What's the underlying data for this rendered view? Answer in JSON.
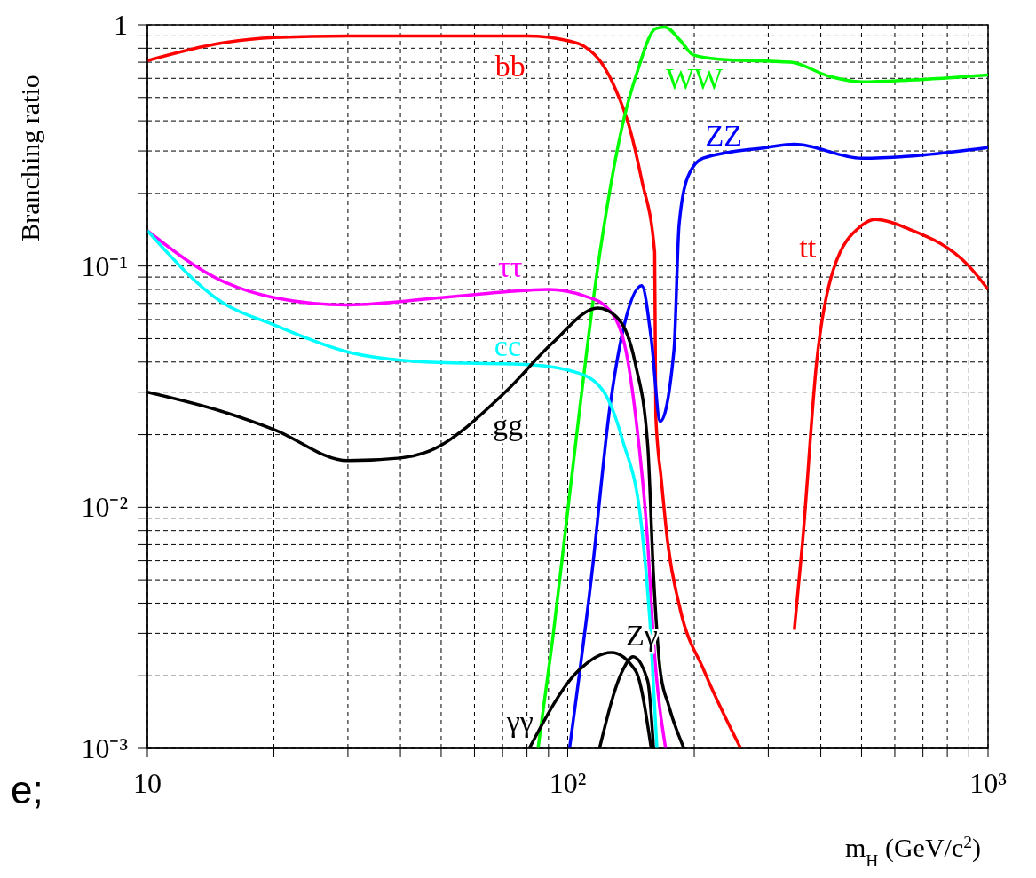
{
  "chart_data": {
    "type": "line",
    "xlabel": "m$_{H}$ (GeV/c$^{2}$)",
    "ylabel": "Branching ratio",
    "log": "xy",
    "grid": true,
    "xlim": [
      10,
      1000
    ],
    "ylim": [
      0.001,
      1
    ],
    "xticks": [
      10,
      {
        "value": 20,
        "label": null
      },
      {
        "value": 30,
        "label": null
      },
      {
        "value": 40,
        "label": null
      },
      {
        "value": 50,
        "label": null
      },
      {
        "value": 60,
        "label": null
      },
      {
        "value": 70,
        "label": null
      },
      {
        "value": 80,
        "label": null
      },
      {
        "value": 90,
        "label": null
      },
      {
        "value": 100,
        "label": "10²"
      },
      {
        "value": 200,
        "label": null
      },
      {
        "value": 300,
        "label": null
      },
      {
        "value": 400,
        "label": null
      },
      {
        "value": 500,
        "label": null
      },
      {
        "value": 600,
        "label": null
      },
      {
        "value": 700,
        "label": null
      },
      {
        "value": 800,
        "label": null
      },
      {
        "value": 900,
        "label": null
      },
      {
        "value": 1000,
        "label": "10³"
      }
    ],
    "yticks": [
      {
        "value": 0.001,
        "label": "10⁻³"
      },
      {
        "value": 0.002,
        "label": null
      },
      {
        "value": 0.003,
        "label": null
      },
      {
        "value": 0.004,
        "label": null
      },
      {
        "value": 0.005,
        "label": null
      },
      {
        "value": 0.006,
        "label": null
      },
      {
        "value": 0.007,
        "label": null
      },
      {
        "value": 0.008,
        "label": null
      },
      {
        "value": 0.009,
        "label": null
      },
      {
        "value": 0.01,
        "label": "10⁻²"
      },
      {
        "value": 0.02,
        "label": null
      },
      {
        "value": 0.03,
        "label": null
      },
      {
        "value": 0.04,
        "label": null
      },
      {
        "value": 0.05,
        "label": null
      },
      {
        "value": 0.06,
        "label": null
      },
      {
        "value": 0.07,
        "label": null
      },
      {
        "value": 0.08,
        "label": null
      },
      {
        "value": 0.09,
        "label": null
      },
      {
        "value": 0.1,
        "label": "10⁻¹"
      },
      {
        "value": 0.2,
        "label": null
      },
      {
        "value": 0.3,
        "label": null
      },
      {
        "value": 0.4,
        "label": null
      },
      {
        "value": 0.5,
        "label": null
      },
      {
        "value": 0.6,
        "label": null
      },
      {
        "value": 0.7,
        "label": null
      },
      {
        "value": 0.8,
        "label": null
      },
      {
        "value": 0.9,
        "label": null
      },
      1
    ],
    "series": [
      {
        "name": "bb",
        "color": "#ff0000",
        "x": [
          10,
          15,
          20,
          30,
          50,
          80,
          100,
          110,
          120,
          130,
          140,
          150,
          161,
          162,
          167,
          173,
          185,
          211,
          258
        ],
        "values": [
          0.71,
          0.84,
          0.886,
          0.9,
          0.9,
          0.9,
          0.86,
          0.81,
          0.7,
          0.54,
          0.38,
          0.227,
          0.114,
          0.024,
          0.013,
          0.0071,
          0.0038,
          0.0021,
          0.001
        ]
      },
      {
        "name": "WW",
        "color": "#00ff00",
        "x": [
          85,
          92,
          101,
          118,
          136,
          146,
          162,
          170,
          186,
          199,
          229,
          339,
          421,
          500,
          650,
          1000
        ],
        "values": [
          0.001,
          0.0028,
          0.0112,
          0.1,
          0.407,
          0.63,
          0.966,
          0.98,
          0.855,
          0.75,
          0.72,
          0.7,
          0.61,
          0.58,
          0.59,
          0.62
        ]
      },
      {
        "name": "ZZ",
        "color": "#0000ff",
        "x": [
          101,
          114,
          126,
          135,
          150,
          158,
          166,
          179,
          184,
          193,
          210,
          297,
          346,
          500,
          1000
        ],
        "values": [
          0.001,
          0.0052,
          0.026,
          0.053,
          0.083,
          0.05,
          0.0227,
          0.045,
          0.147,
          0.234,
          0.28,
          0.31,
          0.32,
          0.28,
          0.31
        ]
      },
      {
        "name": "tt",
        "color": "#ff0000",
        "x": [
          346,
          362,
          391,
          428,
          500,
          538,
          650,
          900,
          1000
        ],
        "values": [
          0.0031,
          0.0072,
          0.04,
          0.096,
          0.147,
          0.156,
          0.142,
          0.1,
          0.08
        ]
      },
      {
        "name": "ττ",
        "color": "#ff00ff",
        "x": [
          10,
          15,
          20,
          30,
          50,
          70,
          90,
          110,
          122,
          135,
          145,
          155,
          160,
          171
        ],
        "values": [
          0.14,
          0.087,
          0.074,
          0.069,
          0.074,
          0.078,
          0.08,
          0.075,
          0.069,
          0.051,
          0.024,
          0.0071,
          0.0028,
          0.001
        ]
      },
      {
        "name": "cc",
        "color": "#00ffff",
        "x": [
          10,
          15,
          20,
          30,
          46,
          81,
          106,
          122,
          135,
          150,
          157,
          163
        ],
        "values": [
          0.14,
          0.071,
          0.057,
          0.044,
          0.04,
          0.039,
          0.036,
          0.03,
          0.019,
          0.0082,
          0.0033,
          0.001
        ]
      },
      {
        "name": "gg",
        "color": "#000000",
        "x": [
          10,
          15,
          20,
          30,
          40,
          46,
          71,
          92,
          118,
          130,
          145,
          155,
          160,
          166,
          174,
          189
        ],
        "values": [
          0.03,
          0.025,
          0.021,
          0.0156,
          0.016,
          0.0169,
          0.03,
          0.048,
          0.067,
          0.062,
          0.039,
          0.018,
          0.0052,
          0.0021,
          0.0015,
          0.001
        ]
      },
      {
        "name": "γγ",
        "color": "#000000",
        "x": [
          81,
          106,
          127,
          145,
          158
        ],
        "values": [
          0.001,
          0.0021,
          0.0025,
          0.0021,
          0.001
        ]
      },
      {
        "name": "Zγ",
        "color": "#000000",
        "x": [
          119,
          135,
          143,
          155,
          160
        ],
        "values": [
          0.001,
          0.0021,
          0.0024,
          0.0019,
          0.001
        ]
      }
    ],
    "annotations": [
      "e;"
    ]
  }
}
